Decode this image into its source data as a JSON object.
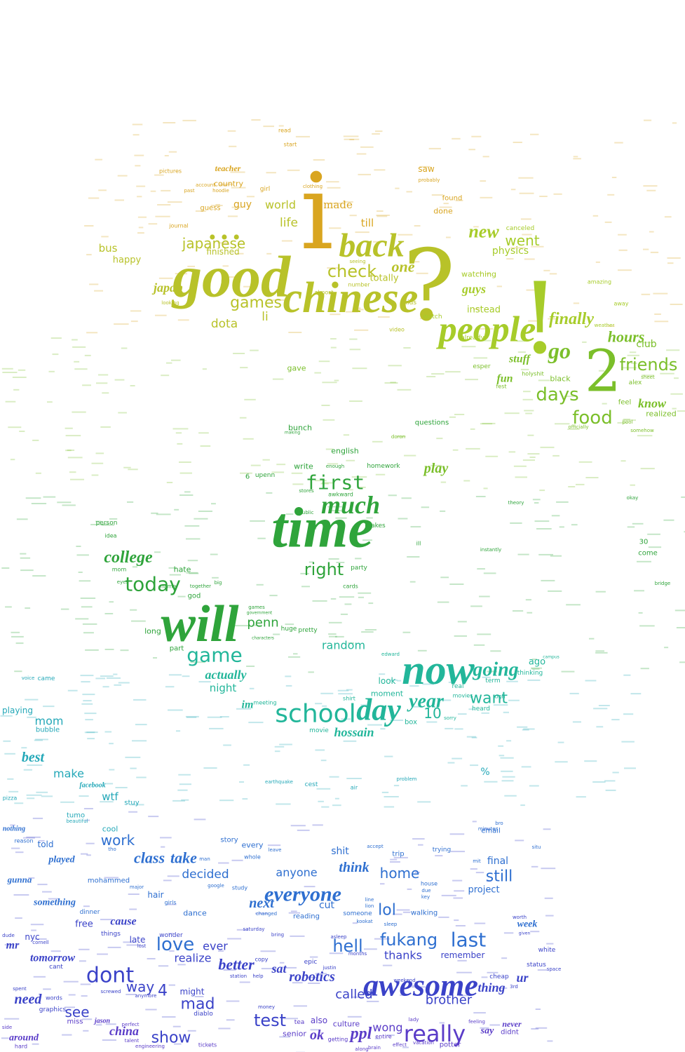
{
  "colors": {
    "gold": "#d9a520",
    "olive": "#b8c229",
    "yellow_green": "#a7cc2a",
    "lime": "#7bbf2a",
    "green": "#2fa43b",
    "teal": "#22b69a",
    "cyan": "#24a8b8",
    "blue": "#2e6fd0",
    "indigo": "#3a42c8",
    "violet": "#5a3cc8"
  },
  "words": [
    {
      "text": "i",
      "color": "gold"
    },
    {
      "text": "good",
      "color": "olive"
    },
    {
      "text": "chinese",
      "color": "olive"
    },
    {
      "text": "?",
      "color": "olive"
    },
    {
      "text": "back",
      "color": "olive"
    },
    {
      "text": "!",
      "color": "yellow_green"
    },
    {
      "text": "people",
      "color": "yellow_green"
    },
    {
      "text": "...",
      "color": "olive"
    },
    {
      "text": "2",
      "color": "lime"
    },
    {
      "text": "time",
      "color": "green"
    },
    {
      "text": "will",
      "color": "green"
    },
    {
      "text": "now",
      "color": "teal"
    },
    {
      "text": "school",
      "color": "teal"
    },
    {
      "text": "day",
      "color": "teal"
    },
    {
      "text": "awesome",
      "color": "indigo"
    },
    {
      "text": "dont",
      "color": "indigo"
    },
    {
      "text": "really",
      "color": "violet"
    },
    {
      "text": "love",
      "color": "blue"
    },
    {
      "text": "hell",
      "color": "blue"
    },
    {
      "text": "last",
      "color": "blue"
    },
    {
      "text": "fukang",
      "color": "blue"
    },
    {
      "text": "everyone",
      "color": "blue"
    },
    {
      "text": "much",
      "color": "green"
    },
    {
      "text": "first",
      "color": "green"
    },
    {
      "text": "right",
      "color": "green"
    },
    {
      "text": "today",
      "color": "green"
    },
    {
      "text": "college",
      "color": "green"
    },
    {
      "text": "game",
      "color": "teal"
    },
    {
      "text": "going",
      "color": "teal"
    },
    {
      "text": "year",
      "color": "teal"
    },
    {
      "text": "want",
      "color": "teal"
    },
    {
      "text": "food",
      "color": "lime"
    },
    {
      "text": "days",
      "color": "lime"
    },
    {
      "text": "friends",
      "color": "lime"
    },
    {
      "text": "hours",
      "color": "lime"
    },
    {
      "text": "finally",
      "color": "yellow_green"
    },
    {
      "text": "go",
      "color": "lime"
    },
    {
      "text": "games",
      "color": "olive"
    },
    {
      "text": "japanese",
      "color": "olive"
    },
    {
      "text": "check",
      "color": "olive"
    },
    {
      "text": "new",
      "color": "yellow_green"
    },
    {
      "text": "went",
      "color": "yellow_green"
    },
    {
      "text": "world",
      "color": "olive"
    },
    {
      "text": "made",
      "color": "gold"
    },
    {
      "text": "life",
      "color": "olive"
    },
    {
      "text": "one",
      "color": "olive"
    },
    {
      "text": "dota",
      "color": "olive"
    },
    {
      "text": "li",
      "color": "olive"
    },
    {
      "text": "guys",
      "color": "yellow_green"
    },
    {
      "text": "physics",
      "color": "yellow_green"
    },
    {
      "text": "japan",
      "color": "olive"
    },
    {
      "text": "work",
      "color": "blue"
    },
    {
      "text": "class",
      "color": "blue"
    },
    {
      "text": "take",
      "color": "blue"
    },
    {
      "text": "decided",
      "color": "blue"
    },
    {
      "text": "anyone",
      "color": "blue"
    },
    {
      "text": "home",
      "color": "blue"
    },
    {
      "text": "still",
      "color": "blue"
    },
    {
      "text": "lol",
      "color": "blue"
    },
    {
      "text": "next",
      "color": "blue"
    },
    {
      "text": "think",
      "color": "blue"
    },
    {
      "text": "test",
      "color": "indigo"
    },
    {
      "text": "mad",
      "color": "indigo"
    },
    {
      "text": "called",
      "color": "indigo"
    },
    {
      "text": "brother",
      "color": "indigo"
    },
    {
      "text": "see",
      "color": "indigo"
    },
    {
      "text": "show",
      "color": "indigo"
    },
    {
      "text": "way",
      "color": "indigo"
    },
    {
      "text": "better",
      "color": "indigo"
    },
    {
      "text": "realize",
      "color": "indigo"
    },
    {
      "text": "thanks",
      "color": "indigo"
    },
    {
      "text": "robotics",
      "color": "indigo"
    },
    {
      "text": "ppl",
      "color": "violet"
    },
    {
      "text": "ok",
      "color": "violet"
    },
    {
      "text": "wong",
      "color": "violet"
    },
    {
      "text": "china",
      "color": "violet"
    },
    {
      "text": "need",
      "color": "indigo"
    },
    {
      "text": "mom",
      "color": "cyan"
    },
    {
      "text": "best",
      "color": "cyan"
    },
    {
      "text": "make",
      "color": "cyan"
    },
    {
      "text": "wtf",
      "color": "cyan"
    },
    {
      "text": "playing",
      "color": "cyan"
    },
    {
      "text": "random",
      "color": "teal"
    },
    {
      "text": "penn",
      "color": "green"
    },
    {
      "text": "actually",
      "color": "teal"
    },
    {
      "text": "night",
      "color": "teal"
    },
    {
      "text": "hossain",
      "color": "teal"
    },
    {
      "text": "10",
      "color": "teal"
    },
    {
      "text": "play",
      "color": "lime"
    },
    {
      "text": "english",
      "color": "green"
    },
    {
      "text": "homework",
      "color": "green"
    },
    {
      "text": "questions",
      "color": "green"
    },
    {
      "text": "club",
      "color": "lime"
    },
    {
      "text": "know",
      "color": "lime"
    },
    {
      "text": "realized",
      "color": "lime"
    },
    {
      "text": "stuff",
      "color": "lime"
    },
    {
      "text": "fun",
      "color": "lime"
    },
    {
      "text": "watching",
      "color": "yellow_green"
    },
    {
      "text": "instead",
      "color": "yellow_green"
    },
    {
      "text": "totally",
      "color": "olive"
    },
    {
      "text": "till",
      "color": "gold"
    },
    {
      "text": "bus",
      "color": "olive"
    },
    {
      "text": "happy",
      "color": "olive"
    },
    {
      "text": "finished",
      "color": "olive"
    },
    {
      "text": "guy",
      "color": "gold"
    },
    {
      "text": "country",
      "color": "gold"
    },
    {
      "text": "teacher",
      "color": "gold"
    },
    {
      "text": "saw",
      "color": "gold"
    },
    {
      "text": "found",
      "color": "gold"
    },
    {
      "text": "done",
      "color": "gold"
    },
    {
      "text": "canceled",
      "color": "yellow_green"
    },
    {
      "text": "hate",
      "color": "green"
    },
    {
      "text": "god",
      "color": "green"
    },
    {
      "text": "long",
      "color": "green"
    },
    {
      "text": "part",
      "color": "green"
    },
    {
      "text": "free",
      "color": "indigo"
    },
    {
      "text": "cause",
      "color": "indigo"
    },
    {
      "text": "hair",
      "color": "blue"
    },
    {
      "text": "dance",
      "color": "blue"
    },
    {
      "text": "project",
      "color": "blue"
    },
    {
      "text": "final",
      "color": "blue"
    },
    {
      "text": "shit",
      "color": "blue"
    },
    {
      "text": "cut",
      "color": "blue"
    },
    {
      "text": "told",
      "color": "blue"
    },
    {
      "text": "played",
      "color": "blue"
    },
    {
      "text": "something",
      "color": "blue"
    },
    {
      "text": "gunna",
      "color": "blue"
    },
    {
      "text": "tomorrow",
      "color": "indigo"
    },
    {
      "text": "mr",
      "color": "indigo"
    },
    {
      "text": "nyc",
      "color": "indigo"
    },
    {
      "text": "late",
      "color": "indigo"
    },
    {
      "text": "ever",
      "color": "indigo"
    },
    {
      "text": "4",
      "color": "indigo"
    },
    {
      "text": "might",
      "color": "indigo"
    },
    {
      "text": "sat",
      "color": "indigo"
    },
    {
      "text": "thing",
      "color": "indigo"
    },
    {
      "text": "ur",
      "color": "indigo"
    },
    {
      "text": "remember",
      "color": "indigo"
    },
    {
      "text": "week",
      "color": "blue"
    },
    {
      "text": "also",
      "color": "violet"
    },
    {
      "text": "senior",
      "color": "violet"
    },
    {
      "text": "culture",
      "color": "violet"
    },
    {
      "text": "say",
      "color": "violet"
    },
    {
      "text": "never",
      "color": "violet"
    },
    {
      "text": "didnt",
      "color": "violet"
    },
    {
      "text": "potter",
      "color": "violet"
    },
    {
      "text": "around",
      "color": "violet"
    },
    {
      "text": "gave",
      "color": "lime"
    },
    {
      "text": "bunch",
      "color": "green"
    },
    {
      "text": "write",
      "color": "green"
    },
    {
      "text": "upenn",
      "color": "green"
    },
    {
      "text": "6",
      "color": "green"
    },
    {
      "text": "ago",
      "color": "teal"
    },
    {
      "text": "term",
      "color": "teal"
    },
    {
      "text": "look",
      "color": "teal"
    },
    {
      "text": "moment",
      "color": "teal"
    },
    {
      "text": "movie",
      "color": "teal"
    },
    {
      "text": "come",
      "color": "green"
    },
    {
      "text": "30",
      "color": "green"
    },
    {
      "text": "box",
      "color": "teal"
    },
    {
      "text": "cool",
      "color": "cyan"
    },
    {
      "text": "beautiful",
      "color": "cyan"
    },
    {
      "text": "stuy",
      "color": "cyan"
    },
    {
      "text": "bubble",
      "color": "cyan"
    },
    {
      "text": "facebook",
      "color": "cyan"
    },
    {
      "text": "story",
      "color": "blue"
    },
    {
      "text": "every",
      "color": "blue"
    },
    {
      "text": "trip",
      "color": "blue"
    },
    {
      "text": "trying",
      "color": "blue"
    },
    {
      "text": "email",
      "color": "blue"
    },
    {
      "text": "reading",
      "color": "blue"
    },
    {
      "text": "walking",
      "color": "blue"
    },
    {
      "text": "someone",
      "color": "blue"
    },
    {
      "text": "dinner",
      "color": "blue"
    },
    {
      "text": "things",
      "color": "indigo"
    },
    {
      "text": "wonder",
      "color": "indigo"
    },
    {
      "text": "cant",
      "color": "indigo"
    },
    {
      "text": "epic",
      "color": "indigo"
    },
    {
      "text": "cheap",
      "color": "indigo"
    },
    {
      "text": "white",
      "color": "indigo"
    },
    {
      "text": "status",
      "color": "indigo"
    },
    {
      "text": "miss",
      "color": "violet"
    },
    {
      "text": "jason",
      "color": "violet"
    },
    {
      "text": "tickets",
      "color": "violet"
    },
    {
      "text": "diablo",
      "color": "indigo"
    },
    {
      "text": "tea",
      "color": "violet"
    },
    {
      "text": "entire",
      "color": "violet"
    },
    {
      "text": "getting",
      "color": "violet"
    },
    {
      "text": "pictures",
      "color": "gold"
    },
    {
      "text": "account",
      "color": "gold"
    },
    {
      "text": "girl",
      "color": "gold"
    },
    {
      "text": "journal",
      "color": "gold"
    },
    {
      "text": "clothing",
      "color": "gold"
    },
    {
      "text": "probably",
      "color": "gold"
    },
    {
      "text": "start",
      "color": "gold"
    },
    {
      "text": "read",
      "color": "gold"
    },
    {
      "text": "number",
      "color": "olive"
    },
    {
      "text": "almost",
      "color": "olive"
    },
    {
      "text": "seeing",
      "color": "olive"
    },
    {
      "text": "kids",
      "color": "olive"
    },
    {
      "text": "video",
      "color": "olive"
    },
    {
      "text": "hoodie",
      "color": "gold"
    },
    {
      "text": "past",
      "color": "gold"
    },
    {
      "text": "guess",
      "color": "gold"
    },
    {
      "text": "looking",
      "color": "olive"
    },
    {
      "text": "watch",
      "color": "yellow_green"
    },
    {
      "text": "already",
      "color": "yellow_green"
    },
    {
      "text": "amazing",
      "color": "yellow_green"
    },
    {
      "text": "weather",
      "color": "yellow_green"
    },
    {
      "text": "away",
      "color": "yellow_green"
    },
    {
      "text": "black",
      "color": "lime"
    },
    {
      "text": "esper",
      "color": "lime"
    },
    {
      "text": "fest",
      "color": "lime"
    },
    {
      "text": "holyshit",
      "color": "lime"
    },
    {
      "text": "alex",
      "color": "lime"
    },
    {
      "text": "sheet",
      "color": "lime"
    },
    {
      "text": "feel",
      "color": "lime"
    },
    {
      "text": "pool",
      "color": "lime"
    },
    {
      "text": "officially",
      "color": "lime"
    },
    {
      "text": "somehow",
      "color": "lime"
    },
    {
      "text": "doron",
      "color": "lime"
    },
    {
      "text": "okay",
      "color": "green"
    },
    {
      "text": "theory",
      "color": "green"
    },
    {
      "text": "instantly",
      "color": "green"
    },
    {
      "text": "bridge",
      "color": "green"
    },
    {
      "text": "ill",
      "color": "green"
    },
    {
      "text": "making",
      "color": "green"
    },
    {
      "text": "enough",
      "color": "green"
    },
    {
      "text": "awkward",
      "color": "green"
    },
    {
      "text": "stores",
      "color": "green"
    },
    {
      "text": "public",
      "color": "green"
    },
    {
      "text": "party",
      "color": "green"
    },
    {
      "text": "cards",
      "color": "green"
    },
    {
      "text": "makes",
      "color": "green"
    },
    {
      "text": "edward",
      "color": "teal"
    },
    {
      "text": "person",
      "color": "green"
    },
    {
      "text": "idea",
      "color": "green"
    },
    {
      "text": "mom",
      "color": "green"
    },
    {
      "text": "eyes",
      "color": "green"
    },
    {
      "text": "name",
      "color": "green"
    },
    {
      "text": "together",
      "color": "green"
    },
    {
      "text": "big",
      "color": "green"
    },
    {
      "text": "government",
      "color": "green"
    },
    {
      "text": "games",
      "color": "green"
    },
    {
      "text": "characters",
      "color": "green"
    },
    {
      "text": "huge",
      "color": "green"
    },
    {
      "text": "pretty",
      "color": "green"
    },
    {
      "text": "meeting",
      "color": "teal"
    },
    {
      "text": "im",
      "color": "teal"
    },
    {
      "text": "real",
      "color": "teal"
    },
    {
      "text": "thinking",
      "color": "teal"
    },
    {
      "text": "movies",
      "color": "teal"
    },
    {
      "text": "heard",
      "color": "teal"
    },
    {
      "text": "sorry",
      "color": "teal"
    },
    {
      "text": "ugh",
      "color": "teal"
    },
    {
      "text": "campus",
      "color": "teal"
    },
    {
      "text": "shirt",
      "color": "teal"
    },
    {
      "text": "earthquake",
      "color": "cyan"
    },
    {
      "text": "cest",
      "color": "cyan"
    },
    {
      "text": "air",
      "color": "cyan"
    },
    {
      "text": "problem",
      "color": "cyan"
    },
    {
      "text": "%",
      "color": "cyan"
    },
    {
      "text": "came",
      "color": "cyan"
    },
    {
      "text": "voice",
      "color": "cyan"
    },
    {
      "text": "pizza",
      "color": "cyan"
    },
    {
      "text": "tumo",
      "color": "cyan"
    },
    {
      "text": "reason",
      "color": "blue"
    },
    {
      "text": "nothing",
      "color": "blue"
    },
    {
      "text": "tho",
      "color": "blue"
    },
    {
      "text": "man",
      "color": "blue"
    },
    {
      "text": "leave",
      "color": "blue"
    },
    {
      "text": "whole",
      "color": "blue"
    },
    {
      "text": "accept",
      "color": "blue"
    },
    {
      "text": "minutes",
      "color": "blue"
    },
    {
      "text": "bro",
      "color": "blue"
    },
    {
      "text": "mit",
      "color": "blue"
    },
    {
      "text": "situ",
      "color": "blue"
    },
    {
      "text": "mohammed",
      "color": "blue"
    },
    {
      "text": "major",
      "color": "blue"
    },
    {
      "text": "google",
      "color": "blue"
    },
    {
      "text": "study",
      "color": "blue"
    },
    {
      "text": "girls",
      "color": "blue"
    },
    {
      "text": "line",
      "color": "blue"
    },
    {
      "text": "lion",
      "color": "blue"
    },
    {
      "text": "key",
      "color": "blue"
    },
    {
      "text": "house",
      "color": "blue"
    },
    {
      "text": "due",
      "color": "blue"
    },
    {
      "text": "changed",
      "color": "blue"
    },
    {
      "text": "kookat",
      "color": "blue"
    },
    {
      "text": "sleep",
      "color": "blue"
    },
    {
      "text": "saturday",
      "color": "indigo"
    },
    {
      "text": "bring",
      "color": "indigo"
    },
    {
      "text": "copy",
      "color": "indigo"
    },
    {
      "text": "worth",
      "color": "indigo"
    },
    {
      "text": "given",
      "color": "indigo"
    },
    {
      "text": "dude",
      "color": "indigo"
    },
    {
      "text": "cornell",
      "color": "indigo"
    },
    {
      "text": "lost",
      "color": "indigo"
    },
    {
      "text": "station",
      "color": "indigo"
    },
    {
      "text": "help",
      "color": "indigo"
    },
    {
      "text": "justin",
      "color": "indigo"
    },
    {
      "text": "months",
      "color": "indigo"
    },
    {
      "text": "asleep",
      "color": "indigo"
    },
    {
      "text": "weekend",
      "color": "indigo"
    },
    {
      "text": "3rd",
      "color": "indigo"
    },
    {
      "text": "space",
      "color": "indigo"
    },
    {
      "text": "spent",
      "color": "indigo"
    },
    {
      "text": "words",
      "color": "indigo"
    },
    {
      "text": "graphics",
      "color": "indigo"
    },
    {
      "text": "anymore",
      "color": "indigo"
    },
    {
      "text": "screwed",
      "color": "indigo"
    },
    {
      "text": "money",
      "color": "indigo"
    },
    {
      "text": "perfect",
      "color": "violet"
    },
    {
      "text": "talent",
      "color": "violet"
    },
    {
      "text": "engineering",
      "color": "violet"
    },
    {
      "text": "feeling",
      "color": "violet"
    },
    {
      "text": "lady",
      "color": "violet"
    },
    {
      "text": "side",
      "color": "violet"
    },
    {
      "text": "hard",
      "color": "violet"
    },
    {
      "text": "effect",
      "color": "violet"
    },
    {
      "text": "vacation",
      "color": "violet"
    },
    {
      "text": "brain",
      "color": "violet"
    },
    {
      "text": "along",
      "color": "violet"
    }
  ]
}
